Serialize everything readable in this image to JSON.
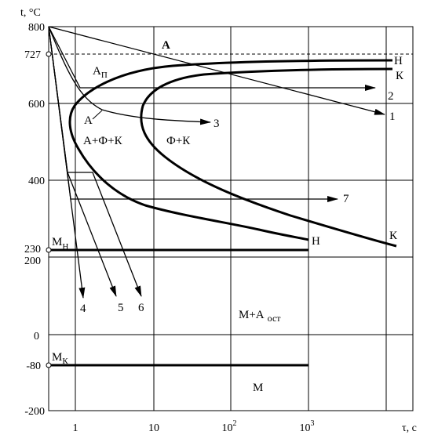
{
  "axes": {
    "y_label": "t, °C",
    "x_label": "τ, с",
    "y_ticks": [
      "800",
      "727",
      "600",
      "400",
      "230",
      "200",
      "0",
      "-80",
      "-200"
    ],
    "x_ticks": [
      "1",
      "10",
      "10",
      "10"
    ],
    "x_tick_powers": [
      "",
      "",
      "2",
      "3"
    ]
  },
  "regions": {
    "austenite": "А",
    "undercooled_austenite": "А",
    "undercooled_sub": "П",
    "austenite_mark": "А",
    "a_f_k": "А+Ф+К",
    "f_k": "Ф+К",
    "m_a_main": "М+А",
    "m_a_sub": "ост",
    "martensite": "М"
  },
  "points": {
    "ms_main": "М",
    "ms_sub": "Н",
    "mf_main": "М",
    "mf_sub": "К"
  },
  "c_curve_labels": {
    "start_upper": "Н",
    "end_upper": "К",
    "start_lower": "Н",
    "end_lower": "К"
  },
  "cooling_curves": [
    "1",
    "2",
    "3",
    "4",
    "5",
    "6",
    "7"
  ]
}
